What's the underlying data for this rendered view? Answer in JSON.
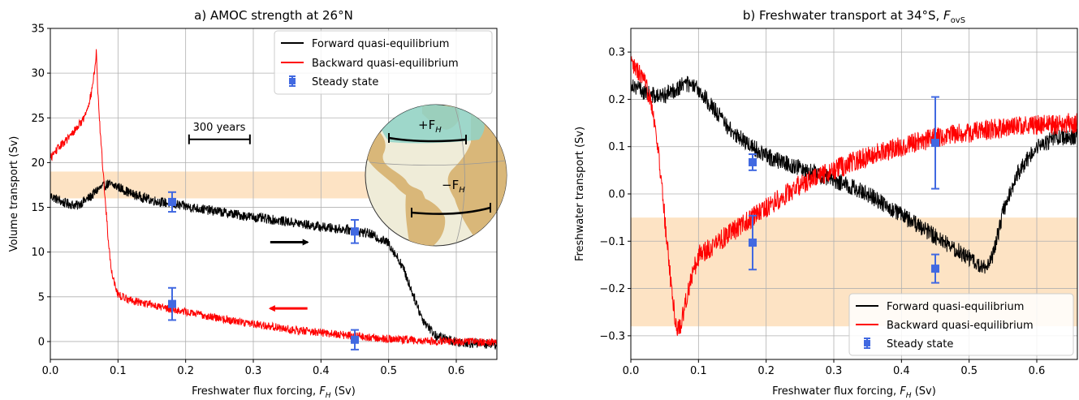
{
  "figure": {
    "panel_a_title": "a) AMOC strength at 26°N",
    "panel_b_title": "b) Freshwater transport at 34°S, ",
    "panel_b_title_math": "F",
    "panel_b_title_sub": "ovS"
  },
  "chart_data": [
    {
      "type": "line",
      "panel": "a",
      "title": "a) AMOC strength at 26°N",
      "xlabel": "Freshwater flux forcing, F_H (Sv)",
      "xlabel_text": "Freshwater flux forcing, ",
      "xlabel_math": "F",
      "xlabel_sub": "H",
      "xlabel_unit": " (Sv)",
      "ylabel": "Volume transport (Sv)",
      "xlim": [
        0.0,
        0.66
      ],
      "ylim": [
        -2,
        35
      ],
      "xticks": [
        0.0,
        0.1,
        0.2,
        0.3,
        0.4,
        0.5,
        0.6
      ],
      "xtick_labels": [
        "0.0",
        "0.1",
        "0.2",
        "0.3",
        "0.4",
        "0.5",
        "0.6"
      ],
      "yticks": [
        0,
        5,
        10,
        15,
        20,
        25,
        30,
        35
      ],
      "ytick_labels": [
        "0",
        "5",
        "10",
        "15",
        "20",
        "25",
        "30",
        "35"
      ],
      "grid": true,
      "legend_position": "top-right",
      "observation_band": [
        16,
        19
      ],
      "band_color": "#fde3c4",
      "annotations": {
        "scale_bar_label": "300 years",
        "scale_bar_x": [
          0.205,
          0.295
        ],
        "scale_bar_y": 22.6,
        "forward_arrow": {
          "x": [
            0.325,
            0.38
          ],
          "y": 11.1,
          "color": "#000000"
        },
        "backward_arrow": {
          "x": [
            0.38,
            0.325
          ],
          "y": 3.7,
          "color": "#ff0000"
        },
        "globe_label_plus": "+F",
        "globe_label_minus": "−F",
        "globe_label_sub": "H"
      },
      "series": [
        {
          "name": "Forward quasi-equilibrium",
          "color": "#000000",
          "noise": 0.55,
          "points": [
            [
              0.0,
              16.3
            ],
            [
              0.02,
              15.5
            ],
            [
              0.04,
              15.2
            ],
            [
              0.06,
              16.2
            ],
            [
              0.07,
              17.0
            ],
            [
              0.085,
              17.6
            ],
            [
              0.1,
              17.3
            ],
            [
              0.12,
              16.5
            ],
            [
              0.15,
              15.8
            ],
            [
              0.2,
              15.1
            ],
            [
              0.25,
              14.5
            ],
            [
              0.3,
              13.9
            ],
            [
              0.35,
              13.4
            ],
            [
              0.4,
              12.8
            ],
            [
              0.44,
              12.5
            ],
            [
              0.47,
              12.1
            ],
            [
              0.5,
              11.0
            ],
            [
              0.52,
              8.5
            ],
            [
              0.535,
              5.5
            ],
            [
              0.55,
              2.5
            ],
            [
              0.57,
              0.6
            ],
            [
              0.6,
              0.0
            ],
            [
              0.63,
              -0.2
            ],
            [
              0.66,
              -0.3
            ]
          ]
        },
        {
          "name": "Backward quasi-equilibrium",
          "color": "#ff0000",
          "noise": 0.45,
          "points": [
            [
              0.0,
              20.5
            ],
            [
              0.01,
              21.5
            ],
            [
              0.03,
              23.0
            ],
            [
              0.05,
              25.0
            ],
            [
              0.06,
              27.5
            ],
            [
              0.066,
              30.5
            ],
            [
              0.068,
              32.5
            ],
            [
              0.07,
              28.0
            ],
            [
              0.075,
              22.0
            ],
            [
              0.08,
              17.0
            ],
            [
              0.085,
              12.0
            ],
            [
              0.09,
              8.0
            ],
            [
              0.1,
              5.2
            ],
            [
              0.12,
              4.6
            ],
            [
              0.15,
              4.1
            ],
            [
              0.2,
              3.3
            ],
            [
              0.25,
              2.6
            ],
            [
              0.3,
              2.0
            ],
            [
              0.35,
              1.4
            ],
            [
              0.4,
              1.0
            ],
            [
              0.45,
              0.6
            ],
            [
              0.5,
              0.3
            ],
            [
              0.55,
              0.1
            ],
            [
              0.6,
              0.0
            ],
            [
              0.66,
              -0.1
            ]
          ]
        },
        {
          "name": "Steady state",
          "color": "#4169e1",
          "type": "errorbar",
          "points": [
            {
              "x": 0.18,
              "y": 15.6,
              "err": 1.1
            },
            {
              "x": 0.45,
              "y": 12.3,
              "err": 1.3
            },
            {
              "x": 0.18,
              "y": 4.2,
              "err": 1.8
            },
            {
              "x": 0.45,
              "y": 0.2,
              "err": 1.1
            }
          ]
        }
      ]
    },
    {
      "type": "line",
      "panel": "b",
      "title": "b) Freshwater transport at 34°S, F_ovS",
      "xlabel": "Freshwater flux forcing, F_H (Sv)",
      "xlabel_text": "Freshwater flux forcing, ",
      "xlabel_math": "F",
      "xlabel_sub": "H",
      "xlabel_unit": " (Sv)",
      "ylabel": "Freshwater transport (Sv)",
      "xlim": [
        0.0,
        0.66
      ],
      "ylim": [
        -0.35,
        0.35
      ],
      "xticks": [
        0.0,
        0.1,
        0.2,
        0.3,
        0.4,
        0.5,
        0.6
      ],
      "xtick_labels": [
        "0.0",
        "0.1",
        "0.2",
        "0.3",
        "0.4",
        "0.5",
        "0.6"
      ],
      "yticks": [
        -0.3,
        -0.2,
        -0.1,
        0.0,
        0.1,
        0.2,
        0.3
      ],
      "ytick_labels": [
        "−0.3",
        "−0.2",
        "−0.1",
        "0.0",
        "0.1",
        "0.2",
        "0.3"
      ],
      "grid": true,
      "legend_position": "bottom-right",
      "observation_band": [
        -0.28,
        -0.05
      ],
      "band_color": "#fde3c4",
      "series": [
        {
          "name": "Forward quasi-equilibrium",
          "color": "#000000",
          "noise": 0.018,
          "points": [
            [
              0.0,
              0.235
            ],
            [
              0.02,
              0.215
            ],
            [
              0.04,
              0.205
            ],
            [
              0.06,
              0.215
            ],
            [
              0.08,
              0.235
            ],
            [
              0.1,
              0.22
            ],
            [
              0.12,
              0.185
            ],
            [
              0.15,
              0.13
            ],
            [
              0.2,
              0.08
            ],
            [
              0.25,
              0.055
            ],
            [
              0.3,
              0.03
            ],
            [
              0.35,
              0.0
            ],
            [
              0.4,
              -0.045
            ],
            [
              0.45,
              -0.09
            ],
            [
              0.5,
              -0.135
            ],
            [
              0.52,
              -0.16
            ],
            [
              0.535,
              -0.13
            ],
            [
              0.55,
              -0.04
            ],
            [
              0.57,
              0.04
            ],
            [
              0.6,
              0.1
            ],
            [
              0.63,
              0.12
            ],
            [
              0.66,
              0.12
            ]
          ]
        },
        {
          "name": "Backward quasi-equilibrium",
          "color": "#ff0000",
          "noise": 0.022,
          "points": [
            [
              0.0,
              0.275
            ],
            [
              0.015,
              0.25
            ],
            [
              0.03,
              0.2
            ],
            [
              0.04,
              0.1
            ],
            [
              0.05,
              -0.05
            ],
            [
              0.06,
              -0.2
            ],
            [
              0.068,
              -0.29
            ],
            [
              0.075,
              -0.27
            ],
            [
              0.085,
              -0.2
            ],
            [
              0.1,
              -0.13
            ],
            [
              0.15,
              -0.08
            ],
            [
              0.2,
              -0.03
            ],
            [
              0.25,
              0.02
            ],
            [
              0.3,
              0.05
            ],
            [
              0.35,
              0.08
            ],
            [
              0.4,
              0.1
            ],
            [
              0.45,
              0.12
            ],
            [
              0.5,
              0.13
            ],
            [
              0.55,
              0.14
            ],
            [
              0.6,
              0.145
            ],
            [
              0.66,
              0.15
            ]
          ]
        },
        {
          "name": "Steady state",
          "color": "#4169e1",
          "type": "errorbar",
          "points": [
            {
              "x": 0.18,
              "y": 0.067,
              "err": 0.017
            },
            {
              "x": 0.45,
              "y": 0.108,
              "err": 0.097
            },
            {
              "x": 0.18,
              "y": -0.103,
              "err": 0.057
            },
            {
              "x": 0.45,
              "y": -0.158,
              "err": 0.03
            }
          ]
        }
      ]
    }
  ]
}
